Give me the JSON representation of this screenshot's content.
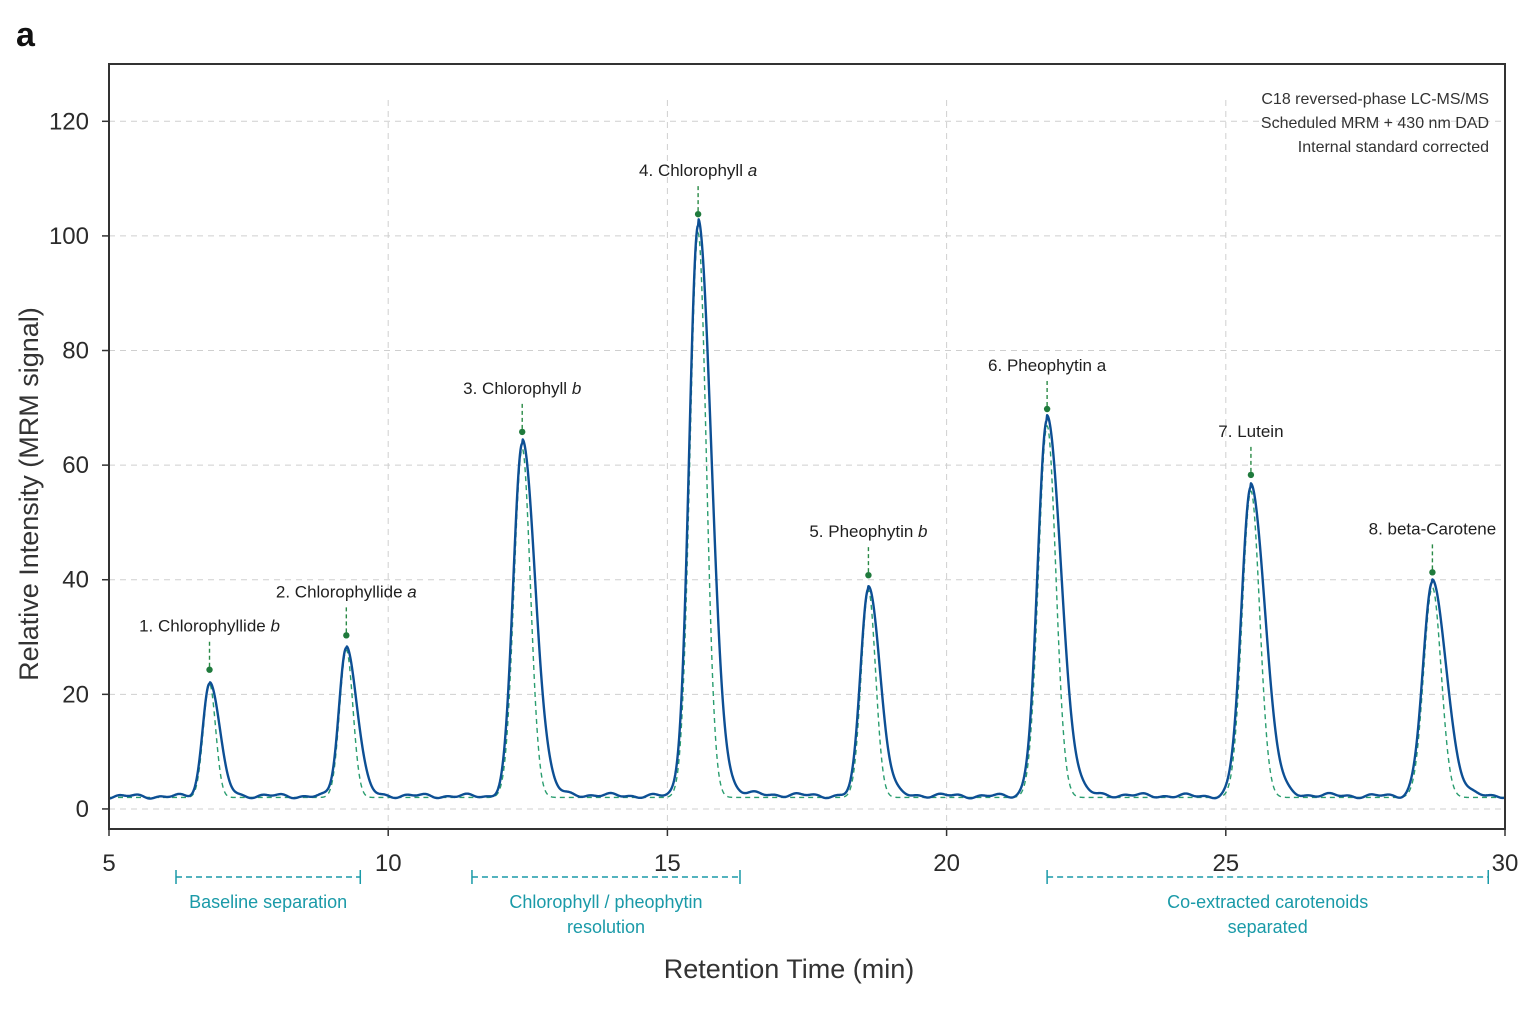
{
  "panel_label": "a",
  "chart_data": {
    "type": "line",
    "xlabel": "Retention Time (min)",
    "ylabel": "Relative Intensity (MRM signal)",
    "xlim": [
      5,
      30
    ],
    "ylim": [
      -3.5,
      130
    ],
    "xticks": [
      5,
      10,
      15,
      20,
      25,
      30
    ],
    "yticks": [
      0,
      20,
      40,
      60,
      80,
      100,
      120
    ],
    "xtick_labels": [
      "5",
      "10",
      "15",
      "20",
      "25",
      "30"
    ],
    "ytick_labels": [
      "0",
      "20",
      "40",
      "60",
      "80",
      "100",
      "120"
    ],
    "grid": true,
    "baseline": 2.2,
    "annotation_lines": [
      "C18 reversed-phase LC-MS/MS",
      "Scheduled MRM + 430 nm DAD",
      "Internal standard corrected"
    ],
    "peaks": [
      {
        "num": "1.",
        "name": "Chlorophyllide",
        "suffix": "b",
        "rt": 6.8,
        "height": 20,
        "width": 0.12
      },
      {
        "num": "2.",
        "name": "Chlorophyllide",
        "suffix": "a",
        "rt": 9.25,
        "height": 26,
        "width": 0.13
      },
      {
        "num": "3.",
        "name": "Chlorophyll",
        "suffix": "b",
        "rt": 12.4,
        "height": 61.5,
        "width": 0.16
      },
      {
        "num": "4.",
        "name": "Chlorophyll",
        "suffix": "a",
        "rt": 15.55,
        "height": 99.5,
        "width": 0.16
      },
      {
        "num": "5.",
        "name": "Pheophytin",
        "suffix": "b",
        "rt": 18.6,
        "height": 36.5,
        "width": 0.14
      },
      {
        "num": "6.",
        "name": "Pheophytin a",
        "suffix": "",
        "rt": 21.8,
        "height": 65.5,
        "width": 0.17
      },
      {
        "num": "7.",
        "name": "Lutein",
        "suffix": "",
        "rt": 25.45,
        "height": 54,
        "width": 0.17
      },
      {
        "num": "8.",
        "name": "beta-Carotene",
        "suffix": "",
        "rt": 28.7,
        "height": 37,
        "width": 0.17
      }
    ],
    "ranges": [
      {
        "label_lines": [
          "Baseline separation"
        ],
        "x_start": 6.2,
        "x_end": 9.5
      },
      {
        "label_lines": [
          "Chlorophyll / pheophytin",
          "resolution"
        ],
        "x_start": 11.5,
        "x_end": 16.3
      },
      {
        "label_lines": [
          "Co-extracted carotenoids",
          "separated"
        ],
        "x_start": 21.8,
        "x_end": 29.7
      }
    ]
  }
}
